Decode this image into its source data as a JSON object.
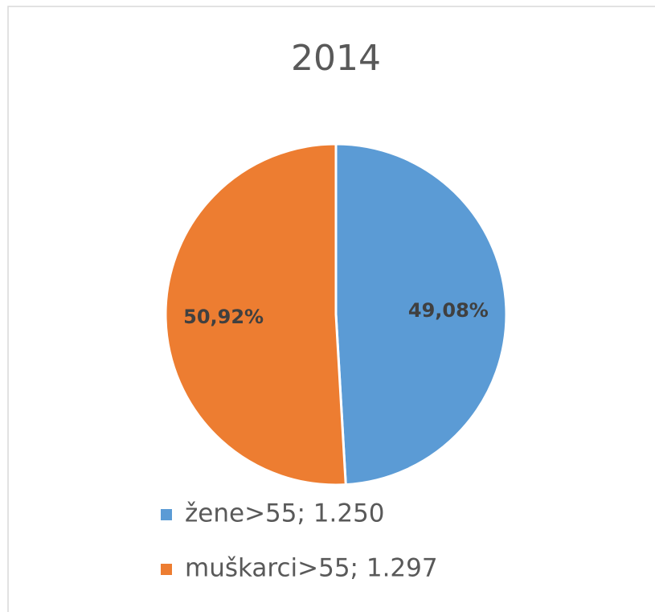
{
  "chart_data": {
    "type": "pie",
    "title": "2014",
    "categories": [
      "žene>55; 1.250",
      "muškarci>55; 1.297"
    ],
    "values": [
      49.08,
      50.92
    ],
    "value_labels": [
      "49,08%",
      "50,92%"
    ],
    "colors": [
      "#5b9bd5",
      "#ed7d31"
    ]
  }
}
